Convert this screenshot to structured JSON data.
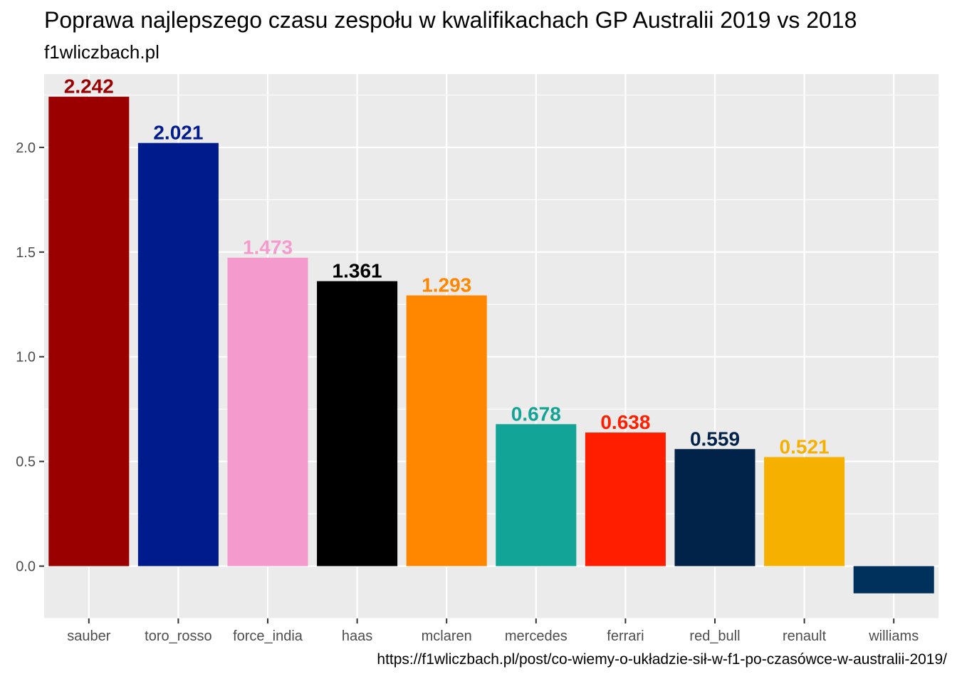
{
  "chart_data": {
    "type": "bar",
    "title": "Poprawa najlepszego czasu zespołu w kwalifikachach GP Australii 2019 vs 2018",
    "subtitle": "f1wliczbach.pl",
    "caption": "https://f1wliczbach.pl/post/co-wiemy-o-układzie-sił-w-f1-po-czasówce-w-australii-2019/",
    "xlabel": "",
    "ylabel": "",
    "categories": [
      "sauber",
      "toro_rosso",
      "force_india",
      "haas",
      "mclaren",
      "mercedes",
      "ferrari",
      "red_bull",
      "renault",
      "williams"
    ],
    "values": [
      2.242,
      2.021,
      1.473,
      1.361,
      1.293,
      0.678,
      0.638,
      0.559,
      0.521,
      -0.13
    ],
    "labels": [
      "2.242",
      "2.021",
      "1.473",
      "1.361",
      "1.293",
      "0.678",
      "0.638",
      "0.559",
      "0.521",
      ""
    ],
    "colors": [
      "#9B0000",
      "#001B8C",
      "#F59ACC",
      "#000000",
      "#FF8700",
      "#11A497",
      "#FF1E00",
      "#012249",
      "#F6B100",
      "#00305C"
    ],
    "yticks": [
      0.0,
      0.5,
      1.0,
      1.5,
      2.0
    ],
    "ytick_labels": [
      "0.0",
      "0.5",
      "1.0",
      "1.5",
      "2.0"
    ],
    "ylim": [
      -0.25,
      2.35
    ],
    "grid": true,
    "legend": "none"
  }
}
